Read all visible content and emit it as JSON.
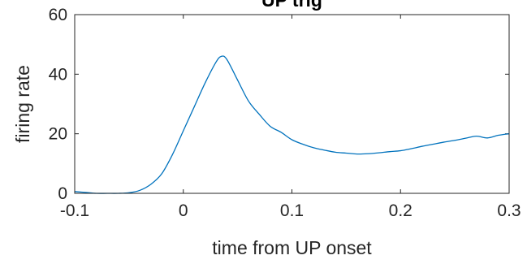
{
  "chart_data": {
    "type": "line",
    "title": "UP trig",
    "xlabel": "time from UP onset",
    "ylabel": "firing rate",
    "xlim": [
      -0.1,
      0.3
    ],
    "ylim": [
      0,
      60
    ],
    "xticks": [
      -0.1,
      0,
      0.1,
      0.2,
      0.3
    ],
    "xtick_labels": [
      "-0.1",
      "0",
      "0.1",
      "0.2",
      "0.3"
    ],
    "yticks": [
      0,
      20,
      40,
      60
    ],
    "ytick_labels": [
      "0",
      "20",
      "40",
      "60"
    ],
    "grid": false,
    "series": [
      {
        "color": "#0072BD",
        "x": [
          -0.1,
          -0.09,
          -0.08,
          -0.07,
          -0.06,
          -0.05,
          -0.04,
          -0.03,
          -0.02,
          -0.01,
          0.0,
          0.01,
          0.02,
          0.03,
          0.035,
          0.04,
          0.05,
          0.06,
          0.07,
          0.08,
          0.09,
          0.1,
          0.11,
          0.12,
          0.13,
          0.14,
          0.15,
          0.16,
          0.17,
          0.18,
          0.19,
          0.2,
          0.21,
          0.22,
          0.23,
          0.24,
          0.25,
          0.26,
          0.27,
          0.28,
          0.29,
          0.3
        ],
        "y": [
          0.6,
          0.3,
          0.0,
          0.0,
          0.0,
          0.2,
          1.0,
          3.0,
          6.5,
          13.0,
          21.0,
          29.0,
          37.0,
          44.0,
          46.0,
          45.0,
          38.0,
          31.0,
          26.5,
          22.5,
          20.5,
          18.0,
          16.5,
          15.3,
          14.5,
          13.8,
          13.5,
          13.2,
          13.3,
          13.6,
          14.0,
          14.3,
          15.0,
          15.8,
          16.5,
          17.2,
          17.8,
          18.5,
          19.2,
          18.6,
          19.5,
          20.0
        ]
      }
    ]
  }
}
